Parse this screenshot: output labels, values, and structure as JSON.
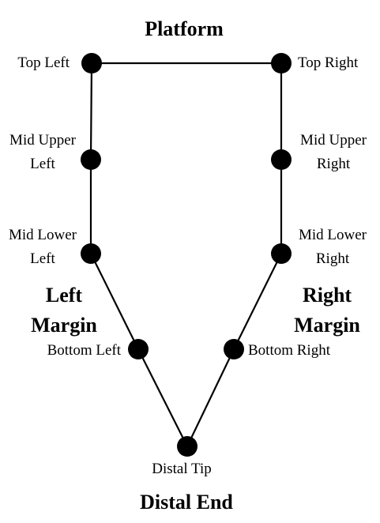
{
  "diagram": {
    "colors": {
      "line": "#000000",
      "node": "#000000",
      "text": "#000000",
      "background": "#ffffff"
    },
    "section_titles": {
      "platform": "Platform",
      "left_margin": [
        "Left",
        "Margin"
      ],
      "right_margin": [
        "Right",
        "Margin"
      ],
      "distal_end": "Distal End"
    },
    "points": {
      "top_left": {
        "label": [
          "Top Left"
        ]
      },
      "top_right": {
        "label": [
          "Top Right"
        ]
      },
      "mid_upper_left": {
        "label": [
          "Mid Upper",
          "Left"
        ]
      },
      "mid_upper_right": {
        "label": [
          "Mid Upper",
          "Right"
        ]
      },
      "mid_lower_left": {
        "label": [
          "Mid Lower",
          "Left"
        ]
      },
      "mid_lower_right": {
        "label": [
          "Mid Lower",
          "Right"
        ]
      },
      "bottom_left": {
        "label": [
          "Bottom Left"
        ]
      },
      "bottom_right": {
        "label": [
          "Bottom Right"
        ]
      },
      "distal_tip": {
        "label": [
          "Distal Tip"
        ]
      }
    },
    "edges": [
      [
        "top_left",
        "top_right"
      ],
      [
        "top_left",
        "mid_upper_left"
      ],
      [
        "mid_upper_left",
        "mid_lower_left"
      ],
      [
        "mid_lower_left",
        "bottom_left"
      ],
      [
        "bottom_left",
        "distal_tip"
      ],
      [
        "top_right",
        "mid_upper_right"
      ],
      [
        "mid_upper_right",
        "mid_lower_right"
      ],
      [
        "mid_lower_right",
        "bottom_right"
      ],
      [
        "bottom_right",
        "distal_tip"
      ]
    ]
  }
}
